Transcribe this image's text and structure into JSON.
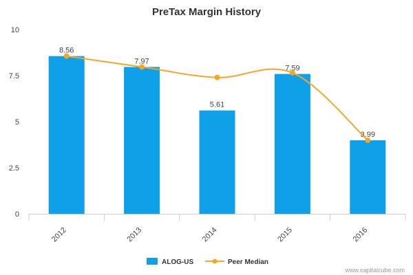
{
  "chart_data": {
    "type": "bar",
    "title": "PreTax Margin History",
    "categories": [
      "2012",
      "2013",
      "2014",
      "2015",
      "2016"
    ],
    "ylim": [
      0,
      10
    ],
    "yticks": [
      "0",
      "2.5",
      "5",
      "7.5",
      "10"
    ],
    "series": [
      {
        "name": "ALOG-US",
        "type": "bar",
        "color": "#0fa0ea",
        "values": [
          8.56,
          7.97,
          5.61,
          7.59,
          3.99
        ],
        "labels": [
          "8.56",
          "7.97",
          "5.61",
          "7.59",
          "3.99"
        ]
      },
      {
        "name": "Peer Median",
        "type": "line",
        "color": "#f5a623",
        "values": [
          8.56,
          7.97,
          7.4,
          7.65,
          3.99
        ]
      }
    ],
    "legend_position": "bottom-center",
    "grid": false
  },
  "credit": "www.capitalcube.com"
}
